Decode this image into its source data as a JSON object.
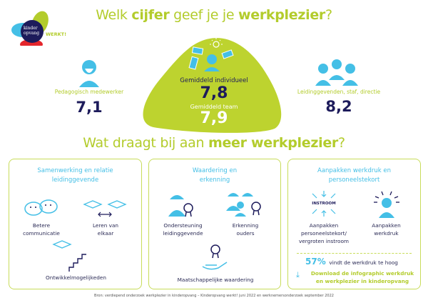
{
  "logo": {
    "line1": "kinder",
    "line2": "opvang",
    "tag": "WERKT!"
  },
  "title": {
    "pre": "Welk ",
    "b1": "cijfer",
    "mid": " geef je je ",
    "b2": "werkplezier",
    "post": "?"
  },
  "left": {
    "label": "Pedagogisch medewerker",
    "value": "7,1"
  },
  "center": {
    "label1": "Gemiddeld individueel",
    "value1": "7,8",
    "label2": "Gemiddeld team",
    "value2": "7,9"
  },
  "right": {
    "label": "Leidinggevenden, staf, directie",
    "value": "8,2"
  },
  "title2": {
    "pre": "Wat draagt bij aan ",
    "b": "meer werkplezier",
    "post": "?"
  },
  "boxes": [
    {
      "title1": "Samenwerking en relatie",
      "title2": "leidinggevende",
      "items": [
        [
          "Betere",
          "communicatie"
        ],
        [
          "Leren van",
          "elkaar"
        ],
        [
          "Ontwikkelmogelijkeden"
        ]
      ]
    },
    {
      "title1": "Waardering en",
      "title2": "erkenning",
      "items": [
        [
          "Ondersteuning",
          "leidinggevende"
        ],
        [
          "Erkenning",
          "ouders"
        ],
        [
          "Maatschappelijke waardering"
        ]
      ]
    },
    {
      "title1": "Aanpakken werkdruk en",
      "title2": "personeelstekort",
      "items": [
        [
          "Aanpakken",
          "personeelstekort/",
          "vergroten instroom"
        ],
        [
          "Aanpakken",
          "werkdruk"
        ]
      ],
      "instroom": "INSTROOM",
      "stat": "57%",
      "stat_text": "vindt de werkdruk te hoog",
      "download1": "Download de infographic werkdruk",
      "download2": "en werkplezier in kinderopvang"
    }
  ],
  "footer": "Bron: verdiepend onderzoek werkplezier in kinderopvang – Kinderopvang werkt! juni 2022 en werknemersonderzoek september 2022",
  "colors": {
    "green": "#b3cc2c",
    "blue": "#44bfe6",
    "navy": "#1d1b5b"
  }
}
